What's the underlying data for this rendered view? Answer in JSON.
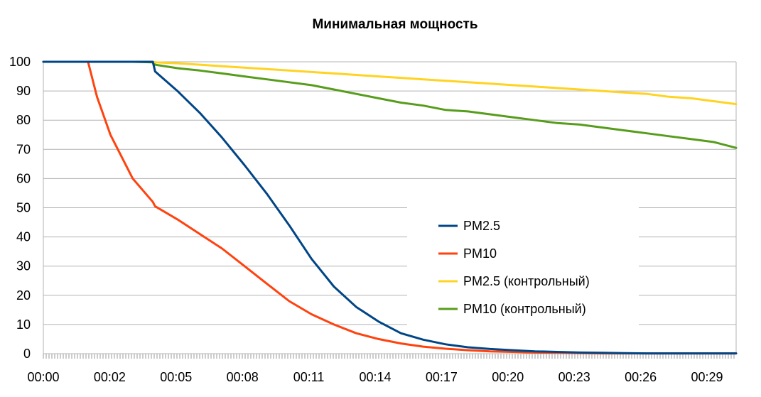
{
  "chart_data": {
    "type": "line",
    "title": "Минимальная мощность",
    "xlabel": "",
    "ylabel": "",
    "ylim": [
      0,
      100
    ],
    "y_ticks": [
      "0",
      "10",
      "20",
      "30",
      "40",
      "50",
      "60",
      "70",
      "80",
      "90",
      "100"
    ],
    "x_ticks": [
      "00:00",
      "00:02",
      "00:05",
      "00:08",
      "00:11",
      "00:14",
      "00:17",
      "00:20",
      "00:23",
      "00:26",
      "00:29"
    ],
    "x_unit": "minutes",
    "x": [
      0,
      1,
      2,
      2.4,
      3,
      4,
      4.9,
      5,
      6,
      7,
      8,
      9,
      10,
      11,
      12,
      13,
      14,
      15,
      16,
      17,
      18,
      19,
      20,
      21,
      22,
      23,
      24,
      25,
      26,
      27,
      28,
      29,
      30,
      31
    ],
    "grid": true,
    "legend_position": "center-right",
    "series": [
      {
        "name": "PM2.5",
        "color": "#004586",
        "values": [
          100,
          100,
          100,
          100,
          100,
          100,
          100,
          96.7,
          90,
          82.5,
          74,
          64.6,
          54.8,
          44,
          32.5,
          23,
          16,
          11,
          7,
          4.8,
          3.2,
          2.2,
          1.6,
          1.2,
          0.8,
          0.6,
          0.4,
          0.3,
          0.2,
          0.1,
          0.1,
          0.1,
          0.1,
          0.1
        ]
      },
      {
        "name": "PM10",
        "color": "#ff420e",
        "values": [
          100,
          100,
          100,
          88,
          75,
          60,
          52,
          50.5,
          46,
          41,
          36,
          30,
          24,
          18,
          13.5,
          10,
          7,
          5,
          3.5,
          2.4,
          1.7,
          1.2,
          0.8,
          0.6,
          0.4,
          0.3,
          0.2,
          0.1,
          0.1,
          0.1,
          0.1,
          0.1,
          0.1,
          0.1
        ]
      },
      {
        "name": "PM2.5 (контрольный)",
        "color": "#ffd320",
        "values": [
          100,
          100,
          100,
          100,
          100,
          100,
          100,
          99.8,
          99.5,
          99,
          98.5,
          98,
          97.5,
          97,
          96.5,
          96,
          95.5,
          95,
          94.5,
          94,
          93.5,
          93,
          92.5,
          92,
          91.5,
          91,
          90.5,
          90,
          89.5,
          89,
          88,
          87.5,
          86.5,
          85.5
        ]
      },
      {
        "name": "PM10 (контрольный)",
        "color": "#579d1c",
        "values": [
          100,
          100,
          100,
          100,
          100,
          100,
          99.8,
          99,
          97.8,
          97,
          96,
          95,
          94,
          93,
          92,
          90.5,
          89,
          87.5,
          86,
          85,
          83.5,
          83,
          82,
          81,
          80,
          79,
          78.5,
          77.5,
          76.5,
          75.5,
          74.5,
          73.5,
          72.5,
          70.5
        ]
      }
    ]
  }
}
